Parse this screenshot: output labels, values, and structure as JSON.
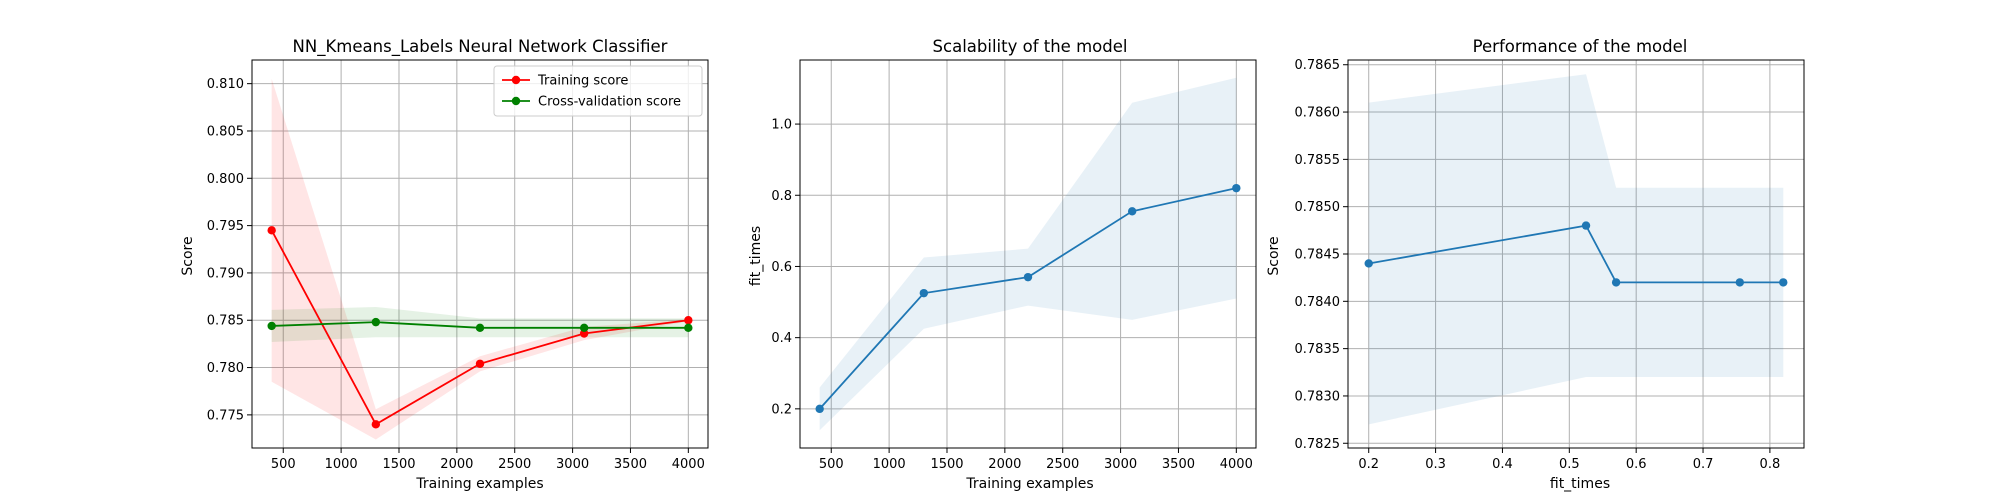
{
  "chart_data": [
    {
      "type": "line",
      "title": "NN_Kmeans_Labels Neural Network Classifier",
      "xlabel": "Training examples",
      "ylabel": "Score",
      "xlim": [
        230,
        4170
      ],
      "ylim": [
        0.7715,
        0.8125
      ],
      "xticks": [
        500,
        1000,
        1500,
        2000,
        2500,
        3000,
        3500,
        4000
      ],
      "yticks": [
        0.775,
        0.78,
        0.785,
        0.79,
        0.795,
        0.8,
        0.805,
        0.81
      ],
      "ytick_decimals": 3,
      "grid": true,
      "legend": "top-right",
      "x": [
        400,
        1300,
        2200,
        3100,
        4000
      ],
      "series": [
        {
          "name": "Training score",
          "color": "#ff0000",
          "band_color": "#ff0000",
          "values": [
            0.7945,
            0.774,
            0.7804,
            0.7836,
            0.785
          ],
          "upper": [
            0.8105,
            0.7756,
            0.7812,
            0.7843,
            0.7851
          ],
          "lower": [
            0.7785,
            0.7724,
            0.7796,
            0.7829,
            0.7849
          ]
        },
        {
          "name": "Cross-validation score",
          "color": "#008000",
          "band_color": "#008000",
          "values": [
            0.7844,
            0.7848,
            0.7842,
            0.7842,
            0.7842
          ],
          "upper": [
            0.7861,
            0.7864,
            0.7852,
            0.7852,
            0.7852
          ],
          "lower": [
            0.7827,
            0.7832,
            0.7832,
            0.7832,
            0.7832
          ]
        }
      ]
    },
    {
      "type": "line",
      "title": "Scalability of the model",
      "xlabel": "Training examples",
      "ylabel": "fit_times",
      "xlim": [
        230,
        4170
      ],
      "ylim": [
        0.09,
        1.18
      ],
      "xticks": [
        500,
        1000,
        1500,
        2000,
        2500,
        3000,
        3500,
        4000
      ],
      "yticks": [
        0.2,
        0.4,
        0.6,
        0.8,
        1.0
      ],
      "ytick_decimals": 1,
      "grid": true,
      "x": [
        400,
        1300,
        2200,
        3100,
        4000
      ],
      "series": [
        {
          "color": "#1f77b4",
          "band_color": "#1f77b4",
          "values": [
            0.2,
            0.525,
            0.57,
            0.755,
            0.82
          ],
          "upper": [
            0.26,
            0.625,
            0.65,
            1.06,
            1.13
          ],
          "lower": [
            0.14,
            0.425,
            0.49,
            0.45,
            0.51
          ]
        }
      ]
    },
    {
      "type": "line",
      "title": "Performance of the model",
      "xlabel": "fit_times",
      "ylabel": "Score",
      "xlim": [
        0.169,
        0.851
      ],
      "ylim": [
        0.78245,
        0.78655
      ],
      "xticks": [
        0.2,
        0.3,
        0.4,
        0.5,
        0.6,
        0.7,
        0.8
      ],
      "yticks": [
        0.7825,
        0.783,
        0.7835,
        0.784,
        0.7845,
        0.785,
        0.7855,
        0.786,
        0.7865
      ],
      "xtick_decimals": 1,
      "ytick_decimals": 4,
      "grid": true,
      "x": [
        0.2,
        0.525,
        0.57,
        0.755,
        0.82
      ],
      "series": [
        {
          "color": "#1f77b4",
          "band_color": "#1f77b4",
          "values": [
            0.7844,
            0.7848,
            0.7842,
            0.7842,
            0.7842
          ],
          "upper": [
            0.7861,
            0.7864,
            0.7852,
            0.7852,
            0.7852
          ],
          "lower": [
            0.7827,
            0.7832,
            0.7832,
            0.7832,
            0.7832
          ]
        }
      ]
    }
  ]
}
